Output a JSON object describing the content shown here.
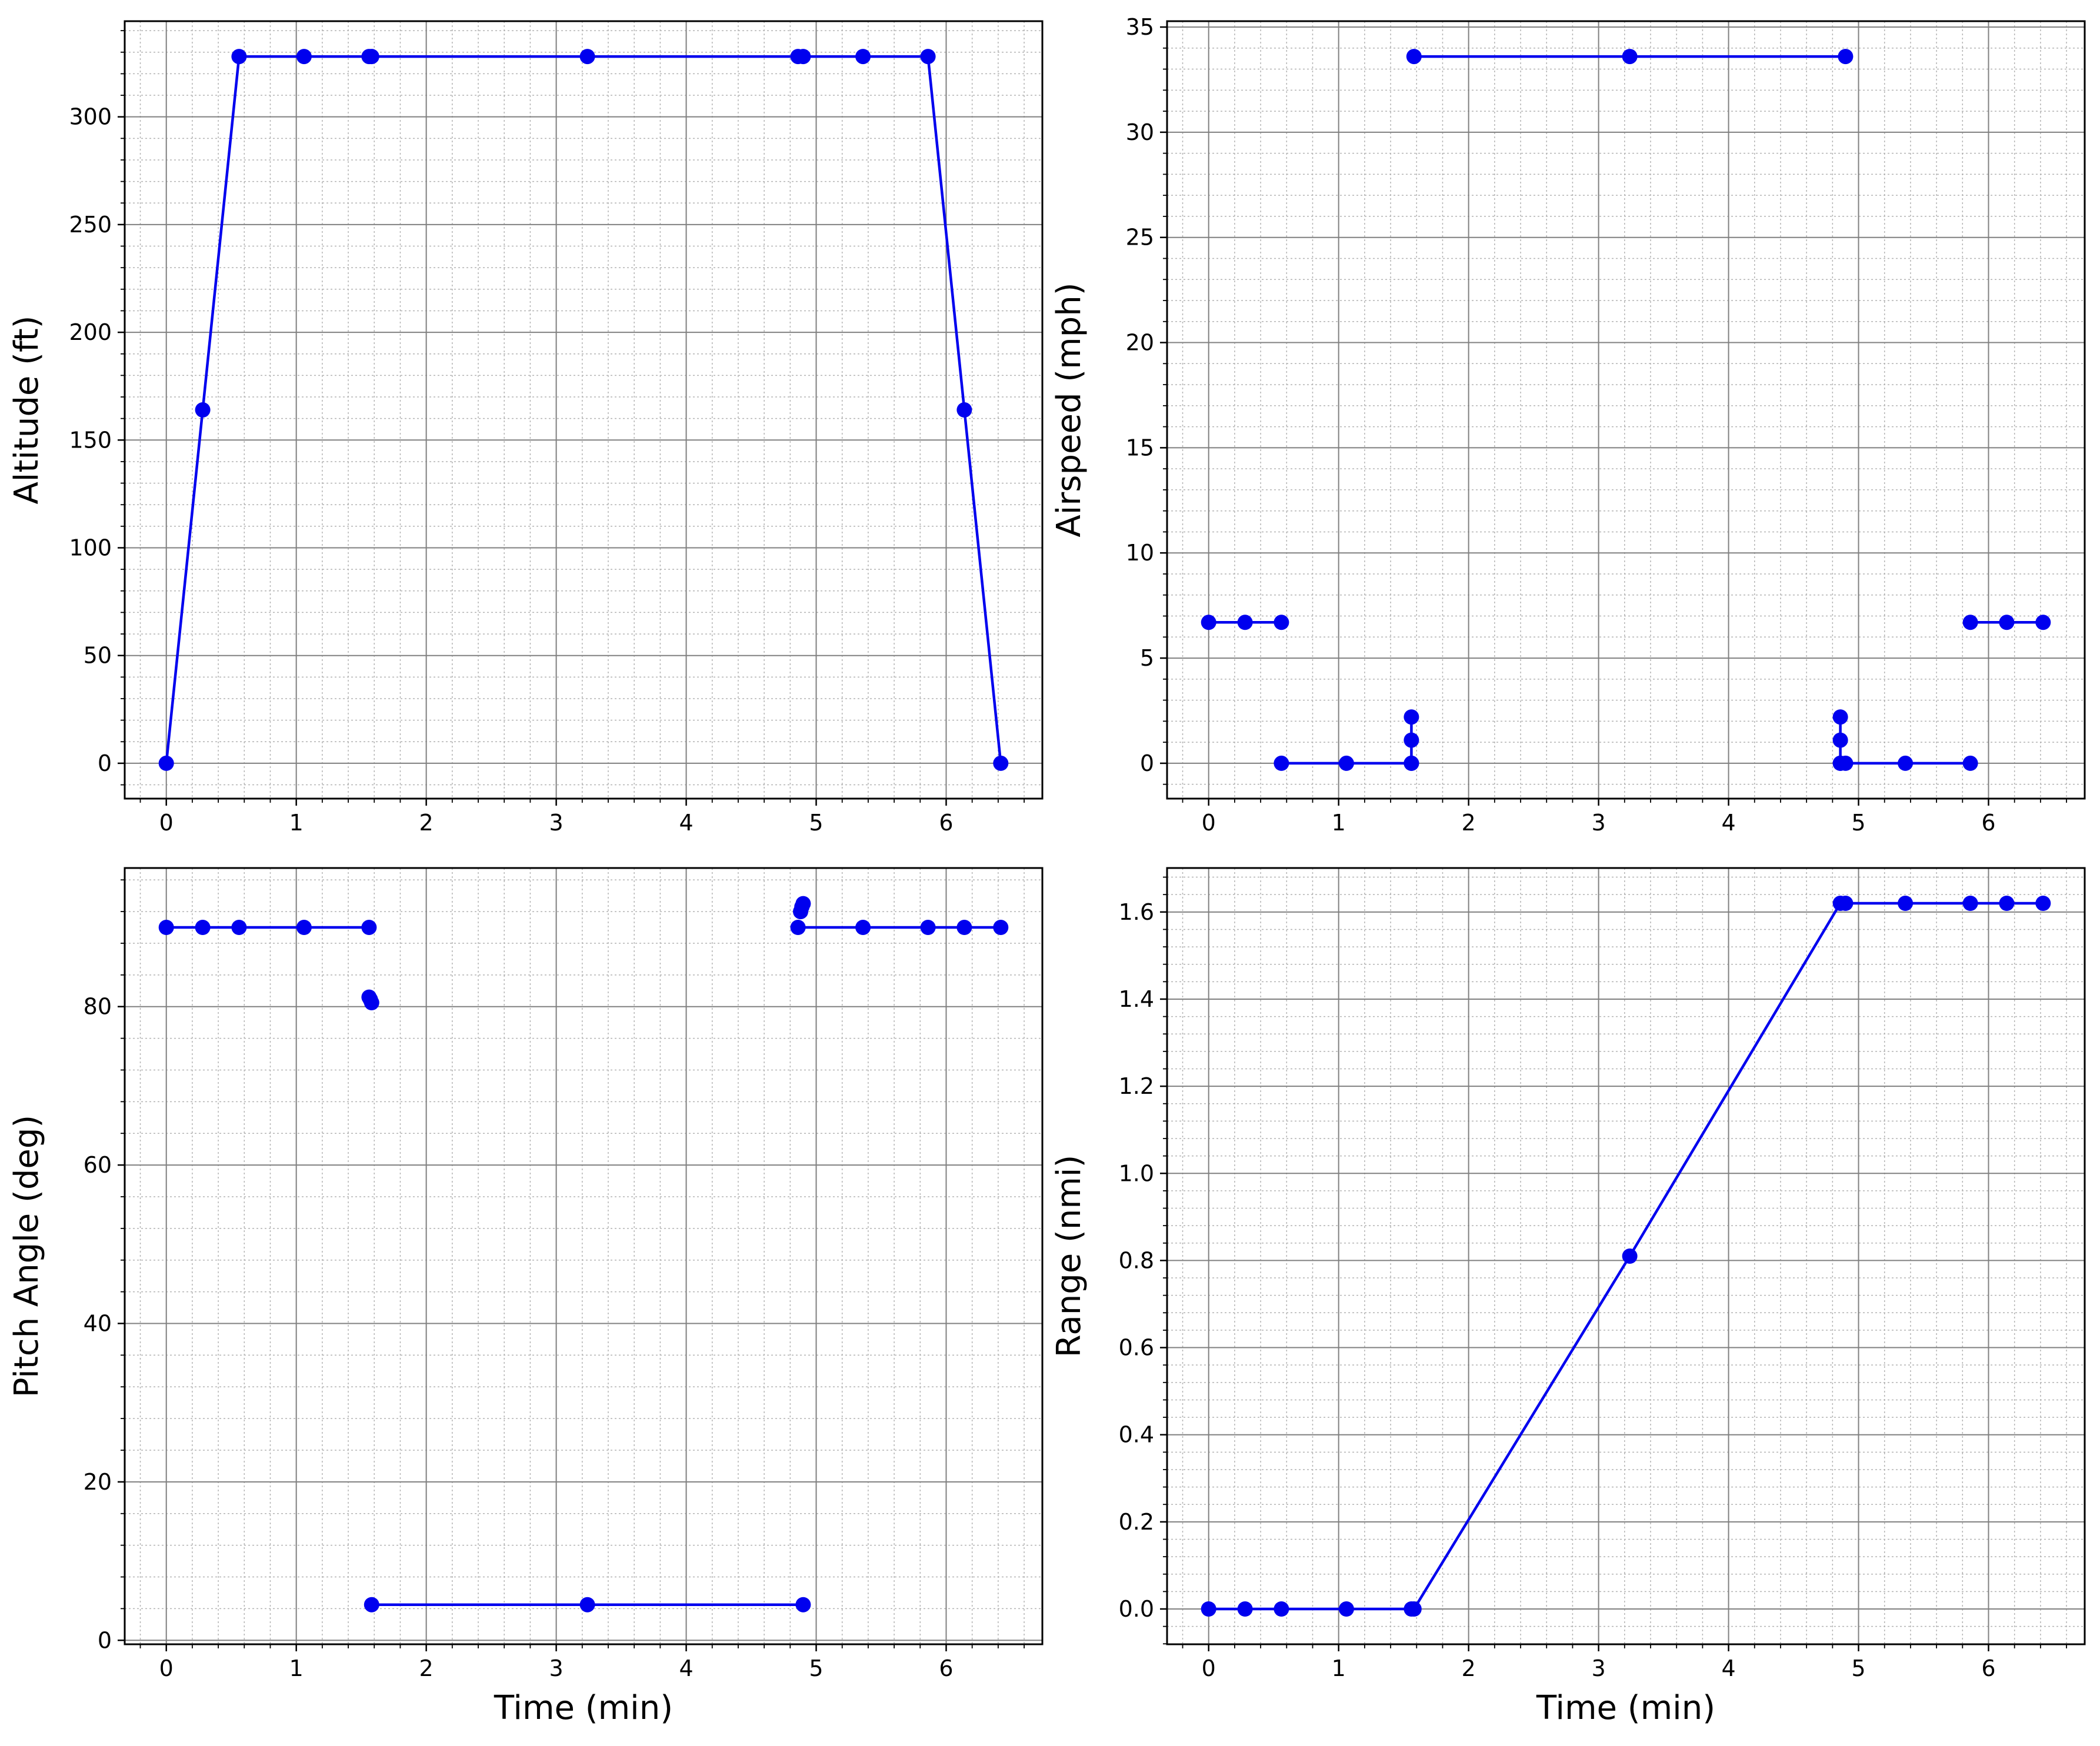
{
  "chart_data": [
    {
      "type": "line",
      "xlabel": "",
      "ylabel": "Altitude (ft)",
      "xlim": [
        -0.32,
        6.74
      ],
      "ylim": [
        -16.4,
        344.4
      ],
      "xticks": [
        0,
        1,
        2,
        3,
        4,
        5,
        6
      ],
      "yticks": [
        0,
        50,
        100,
        150,
        200,
        250,
        300
      ],
      "x_minor_step": 0.2,
      "y_minor_step": 10,
      "grid": true,
      "color": "#0000ee",
      "series": [
        {
          "segments": [
            {
              "x": [
                0,
                0.28,
                0.56,
                1.06,
                1.56,
                1.58,
                3.24,
                4.86,
                4.9,
                5.36,
                5.86,
                6.14,
                6.42
              ],
              "y": [
                0,
                164,
                328,
                328,
                328,
                328,
                328,
                328,
                328,
                328,
                328,
                164,
                0
              ]
            }
          ]
        }
      ]
    },
    {
      "type": "line",
      "xlabel": "",
      "ylabel": "Airspeed (mph)",
      "xlim": [
        -0.32,
        6.74
      ],
      "ylim": [
        -1.68,
        35.28
      ],
      "xticks": [
        0,
        1,
        2,
        3,
        4,
        5,
        6
      ],
      "yticks": [
        0,
        5,
        10,
        15,
        20,
        25,
        30,
        35
      ],
      "x_minor_step": 0.2,
      "y_minor_step": 1,
      "grid": true,
      "color": "#0000ee",
      "series": [
        {
          "segments": [
            {
              "x": [
                0,
                0.28,
                0.56
              ],
              "y": [
                6.7,
                6.7,
                6.7
              ]
            },
            {
              "x": [
                0.56,
                1.06,
                1.56
              ],
              "y": [
                0,
                0,
                0
              ]
            },
            {
              "x": [
                1.56,
                1.56,
                1.56
              ],
              "y": [
                0,
                1.1,
                2.2
              ]
            },
            {
              "x": [
                1.58,
                3.24,
                4.9
              ],
              "y": [
                33.6,
                33.6,
                33.6
              ]
            },
            {
              "x": [
                4.86,
                4.86,
                4.86
              ],
              "y": [
                2.2,
                1.1,
                0
              ]
            },
            {
              "x": [
                4.86,
                4.9,
                5.36,
                5.86
              ],
              "y": [
                0,
                0,
                0,
                0
              ]
            },
            {
              "x": [
                5.86,
                6.14,
                6.42
              ],
              "y": [
                6.7,
                6.7,
                6.7
              ]
            }
          ]
        }
      ]
    },
    {
      "type": "line",
      "xlabel": "Time (min)",
      "ylabel": "Pitch Angle (deg)",
      "xlim": [
        -0.32,
        6.74
      ],
      "ylim": [
        -0.5,
        97.5
      ],
      "xticks": [
        0,
        1,
        2,
        3,
        4,
        5,
        6
      ],
      "yticks": [
        0,
        20,
        40,
        60,
        80
      ],
      "x_minor_step": 0.2,
      "y_minor_step": 4,
      "grid": true,
      "color": "#0000ee",
      "series": [
        {
          "segments": [
            {
              "x": [
                0,
                0.28,
                0.56,
                1.06,
                1.56
              ],
              "y": [
                90,
                90,
                90,
                90,
                90
              ]
            },
            {
              "x": [
                1.56,
                1.57,
                1.58
              ],
              "y": [
                81.2,
                80.9,
                80.5
              ]
            },
            {
              "x": [
                1.58,
                3.24,
                4.9
              ],
              "y": [
                4.5,
                4.5,
                4.5
              ]
            },
            {
              "x": [
                4.88,
                4.89,
                4.9
              ],
              "y": [
                92.0,
                92.6,
                93.0
              ]
            },
            {
              "x": [
                4.86,
                5.36,
                5.86,
                6.14,
                6.42
              ],
              "y": [
                90,
                90,
                90,
                90,
                90
              ]
            }
          ]
        }
      ]
    },
    {
      "type": "line",
      "xlabel": "Time (min)",
      "ylabel": "Range (nmi)",
      "xlim": [
        -0.32,
        6.74
      ],
      "ylim": [
        -0.081,
        1.701
      ],
      "xticks": [
        0,
        1,
        2,
        3,
        4,
        5,
        6
      ],
      "yticks": [
        0.0,
        0.2,
        0.4,
        0.6,
        0.8,
        1.0,
        1.2,
        1.4,
        1.6
      ],
      "ytick_labels": [
        "0.0",
        "0.2",
        "0.4",
        "0.6",
        "0.8",
        "1.0",
        "1.2",
        "1.4",
        "1.6"
      ],
      "x_minor_step": 0.2,
      "y_minor_step": 0.04,
      "grid": true,
      "color": "#0000ee",
      "series": [
        {
          "segments": [
            {
              "x": [
                0,
                0.28,
                0.56,
                1.06,
                1.56,
                1.58,
                3.24,
                4.86,
                4.9,
                5.36,
                5.86,
                6.14,
                6.42
              ],
              "y": [
                0,
                0,
                0,
                0,
                0,
                0,
                0.81,
                1.62,
                1.62,
                1.62,
                1.62,
                1.62,
                1.62
              ]
            }
          ]
        }
      ]
    }
  ]
}
